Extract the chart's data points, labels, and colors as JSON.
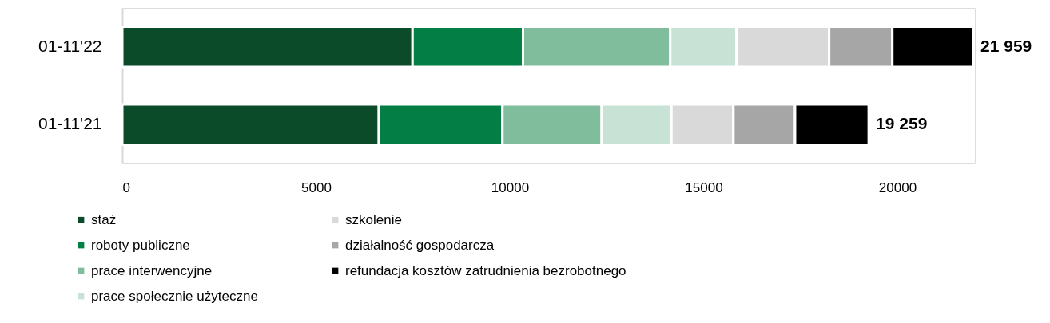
{
  "chart_data": {
    "type": "bar",
    "orientation": "horizontal",
    "stacked": true,
    "categories": [
      "01-11'22",
      "01-11'21"
    ],
    "series": [
      {
        "name": "staż",
        "color": "#0b4b2a",
        "values": [
          7490,
          6620
        ]
      },
      {
        "name": "roboty publiczne",
        "color": "#037f45",
        "values": [
          2850,
          3190
        ]
      },
      {
        "name": "prace interwencyjne",
        "color": "#7fbd9d",
        "values": [
          3800,
          2560
        ]
      },
      {
        "name": "prace społecznie użyteczne",
        "color": "#c8e2d5",
        "values": [
          1710,
          1800
        ]
      },
      {
        "name": "szkolenie",
        "color": "#d9d9d9",
        "values": [
          2390,
          1600
        ]
      },
      {
        "name": "działalność gospodarcza",
        "color": "#a6a6a6",
        "values": [
          1630,
          1590
        ]
      },
      {
        "name": "refundacja kosztów zatrudnienia bezrobotnego",
        "color": "#000000",
        "values": [
          2090,
          1900
        ]
      }
    ],
    "totals": [
      "21 959",
      "19 259"
    ],
    "xlim": [
      0,
      22000
    ],
    "xticks": [
      0,
      5000,
      10000,
      15000,
      20000
    ],
    "grid": false,
    "legend": "bottom"
  }
}
